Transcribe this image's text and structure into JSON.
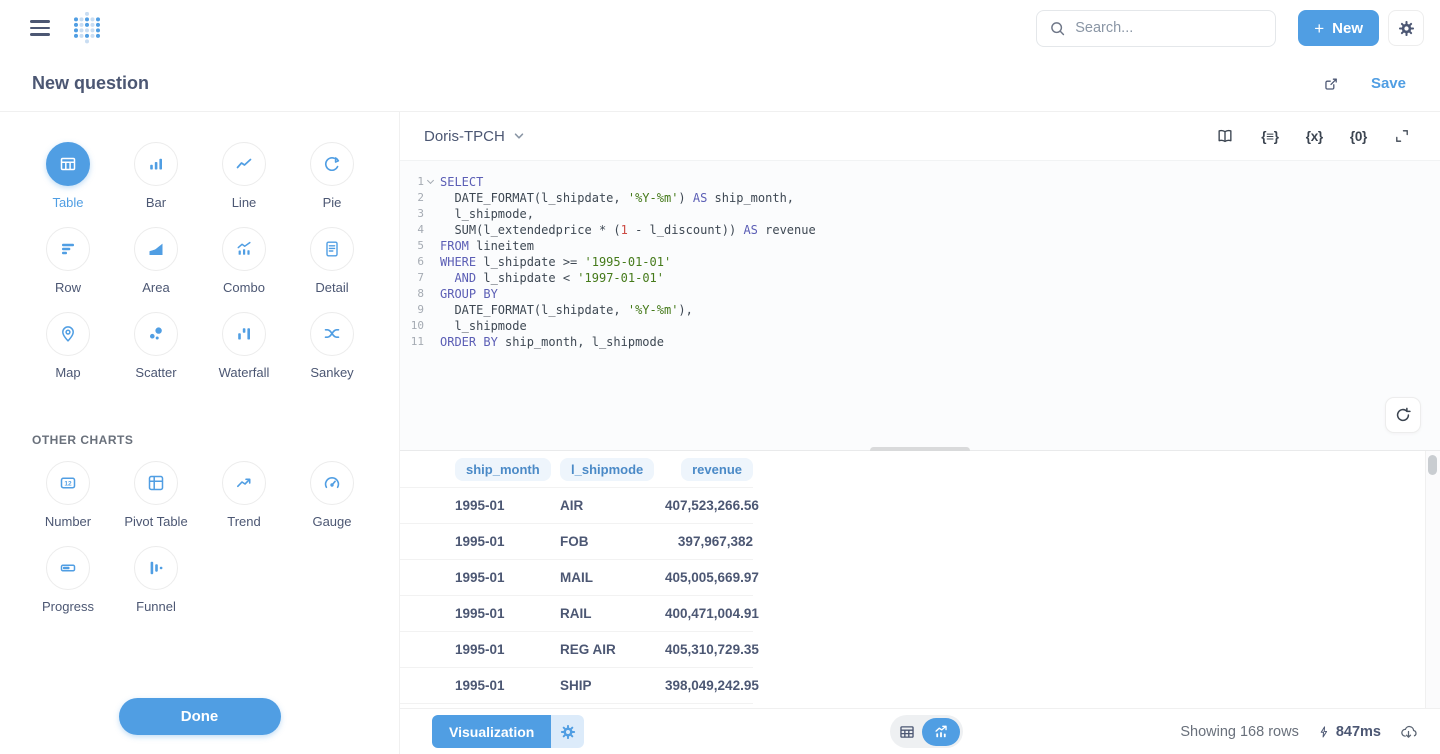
{
  "app": {
    "search_placeholder": "Search...",
    "new_label": "New"
  },
  "question": {
    "title": "New question",
    "save_label": "Save"
  },
  "sidebar": {
    "charts": [
      {
        "label": "Table",
        "selected": true
      },
      {
        "label": "Bar"
      },
      {
        "label": "Line"
      },
      {
        "label": "Pie"
      },
      {
        "label": "Row"
      },
      {
        "label": "Area"
      },
      {
        "label": "Combo"
      },
      {
        "label": "Detail"
      },
      {
        "label": "Map"
      },
      {
        "label": "Scatter"
      },
      {
        "label": "Waterfall"
      },
      {
        "label": "Sankey"
      }
    ],
    "other_section_label": "OTHER CHARTS",
    "other_charts": [
      {
        "label": "Number"
      },
      {
        "label": "Pivot Table"
      },
      {
        "label": "Trend"
      },
      {
        "label": "Gauge"
      },
      {
        "label": "Progress"
      },
      {
        "label": "Funnel"
      }
    ],
    "done_label": "Done"
  },
  "editor": {
    "database": "Doris-TPCH",
    "sql_lines": [
      {
        "n": "1",
        "fold": true,
        "segs": [
          [
            "SELECT",
            "kw"
          ]
        ]
      },
      {
        "n": "2",
        "segs": [
          [
            "  DATE_FORMAT(l_shipdate, ",
            "id"
          ],
          [
            "'%Y-%m'",
            "str"
          ],
          [
            ") ",
            "id"
          ],
          [
            "AS",
            "kw"
          ],
          [
            " ship_month,",
            "id"
          ]
        ]
      },
      {
        "n": "3",
        "segs": [
          [
            "  l_shipmode,",
            "id"
          ]
        ]
      },
      {
        "n": "4",
        "segs": [
          [
            "  SUM(l_extendedprice * (",
            "id"
          ],
          [
            "1",
            "num"
          ],
          [
            " - l_discount)) ",
            "id"
          ],
          [
            "AS",
            "kw"
          ],
          [
            " revenue",
            "id"
          ]
        ]
      },
      {
        "n": "5",
        "segs": [
          [
            "FROM",
            "kw"
          ],
          [
            " lineitem",
            "id"
          ]
        ]
      },
      {
        "n": "6",
        "segs": [
          [
            "WHERE",
            "kw"
          ],
          [
            " l_shipdate >= ",
            "id"
          ],
          [
            "'1995-01-01'",
            "str"
          ]
        ]
      },
      {
        "n": "7",
        "segs": [
          [
            "  ",
            "id"
          ],
          [
            "AND",
            "kw"
          ],
          [
            " l_shipdate < ",
            "id"
          ],
          [
            "'1997-01-01'",
            "str"
          ]
        ]
      },
      {
        "n": "8",
        "segs": [
          [
            "GROUP BY",
            "kw"
          ]
        ]
      },
      {
        "n": "9",
        "segs": [
          [
            "  DATE_FORMAT(l_shipdate, ",
            "id"
          ],
          [
            "'%Y-%m'",
            "str"
          ],
          [
            "),",
            "id"
          ]
        ]
      },
      {
        "n": "10",
        "segs": [
          [
            "  l_shipmode",
            "id"
          ]
        ]
      },
      {
        "n": "11",
        "segs": [
          [
            "ORDER BY",
            "kw"
          ],
          [
            " ship_month, l_shipmode",
            "id"
          ]
        ]
      }
    ],
    "tool_labels": {
      "format": "{≡}",
      "variables": "{x}",
      "snippets": "{0}"
    }
  },
  "results": {
    "columns": [
      "ship_month",
      "l_shipmode",
      "revenue"
    ],
    "rows": [
      [
        "1995-01",
        "AIR",
        "407,523,266.56"
      ],
      [
        "1995-01",
        "FOB",
        "397,967,382"
      ],
      [
        "1995-01",
        "MAIL",
        "405,005,669.97"
      ],
      [
        "1995-01",
        "RAIL",
        "400,471,004.91"
      ],
      [
        "1995-01",
        "REG AIR",
        "405,310,729.35"
      ],
      [
        "1995-01",
        "SHIP",
        "398,049,242.95"
      ]
    ]
  },
  "footer": {
    "visualization_label": "Visualization",
    "row_count": "Showing 168 rows",
    "duration": "847ms"
  },
  "colors": {
    "brand": "#509EE3",
    "text": "#4C5773",
    "muted": "#69707B",
    "keyword": "#5B5EB5",
    "string": "#457A1A",
    "number": "#CC4A43",
    "header_pill_bg": "#EEF5FC",
    "header_pill_text": "#4B8AC7"
  }
}
